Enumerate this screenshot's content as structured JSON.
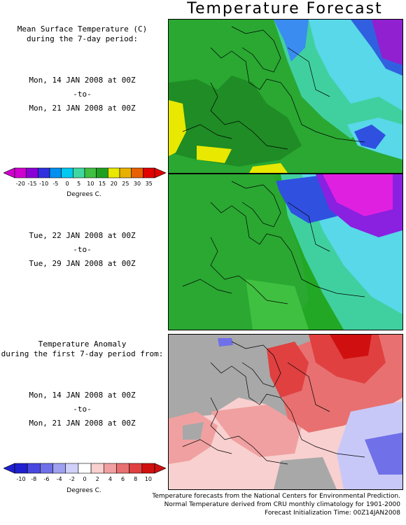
{
  "title": "Temperature Forecast",
  "panel1": {
    "heading1": "Mean Surface Temperature (C)",
    "heading2": "during the 7-day period:",
    "start": "Mon, 14 JAN 2008 at 00Z",
    "to": "-to-",
    "end": "Mon, 21 JAN 2008 at 00Z"
  },
  "panel2": {
    "start": "Tue, 22 JAN 2008 at 00Z",
    "to": "-to-",
    "end": "Tue, 29 JAN 2008 at 00Z"
  },
  "panel3": {
    "heading1": "Temperature Anomaly",
    "heading2": "during the first 7-day period from:",
    "start": "Mon, 14 JAN 2008 at 00Z",
    "to": "-to-",
    "end": "Mon, 21 JAN 2008 at 00Z"
  },
  "temp_scale": {
    "ticks": [
      "-20",
      "-15",
      "-10",
      "-5",
      "0",
      "5",
      "10",
      "15",
      "20",
      "25",
      "30",
      "35"
    ],
    "unit": "Degrees C.",
    "colors": [
      "#d000d0",
      "#8a00d8",
      "#3030e0",
      "#0090f0",
      "#00c8f0",
      "#40d8a0",
      "#40c040",
      "#20a020",
      "#e8e800",
      "#e8b000",
      "#e86000",
      "#e00000"
    ]
  },
  "anomaly_scale": {
    "ticks": [
      "-10",
      "-8",
      "-6",
      "-4",
      "-2",
      "0",
      "2",
      "4",
      "6",
      "8",
      "10"
    ],
    "unit": "Degrees C.",
    "colors": [
      "#2020d0",
      "#4848e0",
      "#7070e8",
      "#a0a0f0",
      "#d0d0f8",
      "#ffffff",
      "#f8d0d0",
      "#f0a0a0",
      "#e87070",
      "#e04040",
      "#d01010"
    ]
  },
  "footer": {
    "line1": "Temperature forecasts from the National Centers for Environmental Prediction.",
    "line2": "Normal Temperature derived from CRU monthly climatology for 1901-2000",
    "line3": "Forecast Initialization Time: 00Z14JAN2008"
  }
}
